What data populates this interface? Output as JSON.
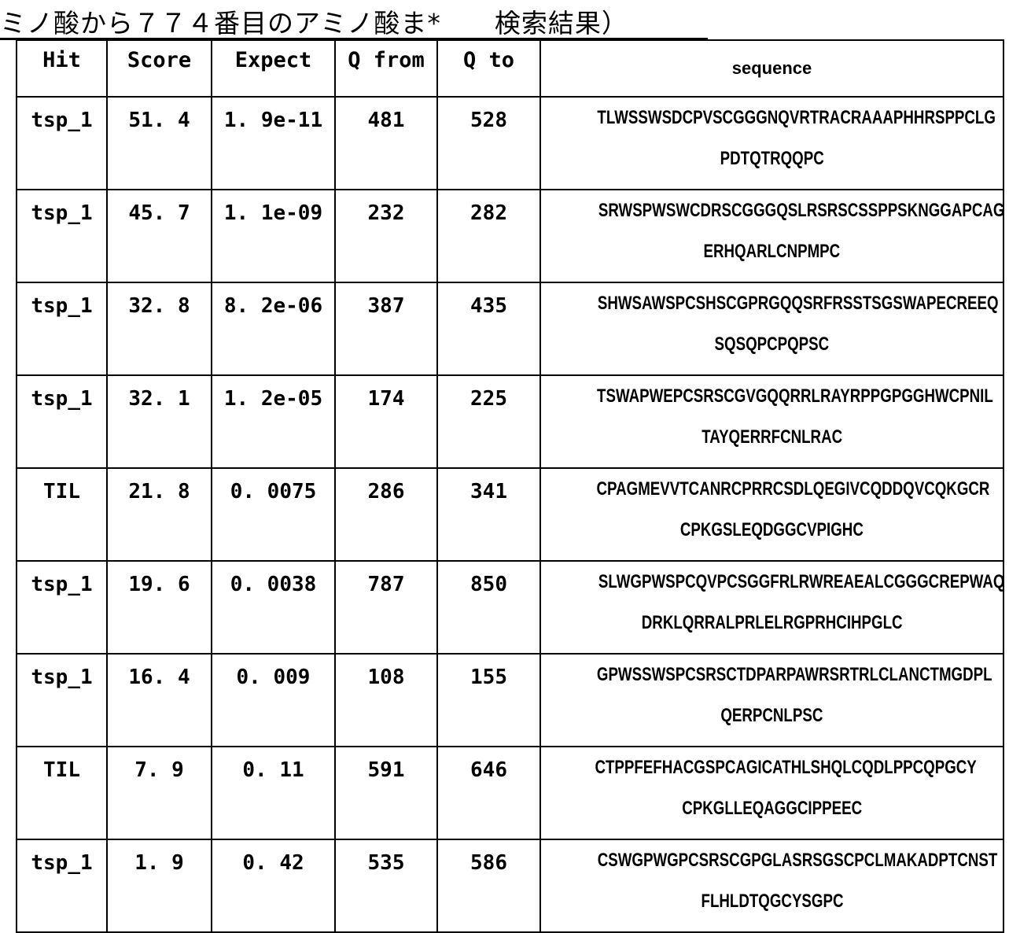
{
  "title": "ミノ酸から７７４番目のアミノ酸ま*　　検索結果）",
  "table": {
    "headers": [
      "Hit",
      "Score",
      "Expect",
      "Q from",
      "Q to",
      "sequence"
    ],
    "rows": [
      {
        "hit": "tsp_1",
        "score": "51. 4",
        "expect": "1. 9e-11",
        "qfrom": "481",
        "qto": "528",
        "seq1": "TLWSSWSDCPVSCGGGNQVRTRACRAAAPHHRSPPCLG",
        "seq2": "PDTQTRQQPC"
      },
      {
        "hit": "tsp_1",
        "score": "45. 7",
        "expect": "1. 1e-09",
        "qfrom": "232",
        "qto": "282",
        "seq1": "SRWSPWSWCDRSCGGGQSLRSRSCSSPPSKNGGAPCAG",
        "seq2": "ERHQARLCNPMPC"
      },
      {
        "hit": "tsp_1",
        "score": "32. 8",
        "expect": "8. 2e-06",
        "qfrom": "387",
        "qto": "435",
        "seq1": "SHWSAWSPCSHSCGPRGQQSRFRSSTSGSWAPECREEQ",
        "seq2": "SQSQPCPQPSC"
      },
      {
        "hit": "tsp_1",
        "score": "32. 1",
        "expect": "1. 2e-05",
        "qfrom": "174",
        "qto": "225",
        "seq1": "TSWAPWEPCSRSCGVGQQRRLRAYRPPGPGGHWCPNIL",
        "seq2": "TAYQERRFCNLRAC"
      },
      {
        "hit": "TIL",
        "score": "21. 8",
        "expect": "0. 0075",
        "qfrom": "286",
        "qto": "341",
        "seq1": "CPAGMEVVTCANRCPRRCSDLQEGIVCQDDQVCQKGCR",
        "seq2": "CPKGSLEQDGGCVPIGHC"
      },
      {
        "hit": "tsp_1",
        "score": "19. 6",
        "expect": "0. 0038",
        "qfrom": "787",
        "qto": "850",
        "seq1": "SLWGPWSPCQVPCSGGFRLRWREAEALCGGGCREPWAQ",
        "seq2": "DRKLQRRALPRLELRGPRHCIHPGLC"
      },
      {
        "hit": "tsp_1",
        "score": "16. 4",
        "expect": "0. 009",
        "qfrom": "108",
        "qto": "155",
        "seq1": "GPWSSWSPCSRSCTDPARPAWRSRTRLCLANCTMGDPL",
        "seq2": "QERPCNLPSC"
      },
      {
        "hit": "TIL",
        "score": "7. 9",
        "expect": "0. 11",
        "qfrom": "591",
        "qto": "646",
        "seq1": "CTPPFEFHACGSPCAGICATHLSHQLCQDLPPCQPGCY",
        "seq2": "CPKGLLEQAGGCIPPEEC"
      },
      {
        "hit": "tsp_1",
        "score": "1. 9",
        "expect": "0. 42",
        "qfrom": "535",
        "qto": "586",
        "seq1": "CSWGPWGPCSRSCGPGLASRSGSCPCLMAKADPTCNST",
        "seq2": "FLHLDTQGCYSGPC"
      }
    ]
  }
}
